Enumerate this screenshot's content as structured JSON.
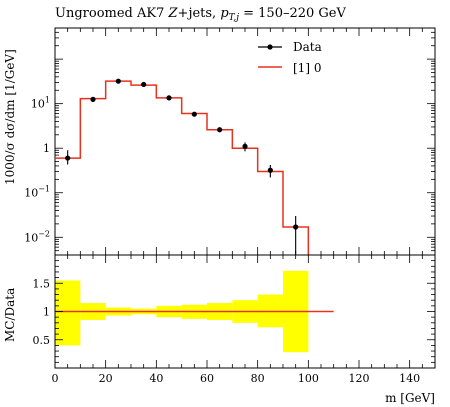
{
  "title": "Ungroomed AK7 Z+jets, p_{T,j} = 150–220 GeV",
  "title_parts": {
    "prefix": "Ungroomed AK7 ",
    "z": "Z",
    "mid": "+jets, ",
    "pt": "p",
    "sub": "T,j",
    "suffix": " = 150–220 GeV"
  },
  "legend": {
    "data_label": "Data",
    "mc_label": "[1] 0",
    "placement": "top-right"
  },
  "colors": {
    "mc_line": "#e8321e",
    "ratio_band": "#ffff00",
    "data_marker": "#000000"
  },
  "chart_data": [
    {
      "type": "line",
      "panel": "main",
      "ylabel": "1000/σ dσ/dm [1/GeV]",
      "ylog": true,
      "ylim": [
        0.004,
        500
      ],
      "xlim": [
        0,
        150
      ],
      "y_ticks": [
        {
          "value": 0.01,
          "base": "10",
          "exp": "−2"
        },
        {
          "value": 0.1,
          "base": "10",
          "exp": "−1"
        },
        {
          "value": 1,
          "base": "1",
          "exp": ""
        },
        {
          "value": 10,
          "base": "10",
          "exp": "1"
        }
      ],
      "bin_edges": [
        0,
        10,
        20,
        30,
        40,
        50,
        60,
        70,
        80,
        90,
        100
      ],
      "series": [
        {
          "name": "Data",
          "x": [
            5,
            15,
            25,
            35,
            45,
            55,
            65,
            75,
            85,
            95
          ],
          "y": [
            0.6,
            12.5,
            32,
            27,
            13.5,
            5.8,
            2.6,
            1.1,
            0.32,
            0.017
          ],
          "err_lo": [
            0.43,
            11.3,
            30.5,
            25.6,
            12.5,
            5.2,
            2.3,
            0.85,
            0.22,
            0.004
          ],
          "err_hi": [
            0.9,
            14,
            34,
            28.5,
            14.5,
            6.4,
            2.9,
            1.35,
            0.42,
            0.03
          ]
        },
        {
          "name": "[1] 0",
          "y": [
            0.6,
            13,
            32,
            26,
            13.5,
            6.0,
            2.6,
            1.0,
            0.3,
            0.017
          ]
        }
      ]
    },
    {
      "type": "area",
      "panel": "ratio",
      "xlabel": "m [GeV]",
      "ylabel": "MC/Data",
      "xlim": [
        0,
        150
      ],
      "ylim": [
        0,
        2
      ],
      "x_ticks": [
        0,
        20,
        40,
        60,
        80,
        100,
        120,
        140
      ],
      "y_ticks": [
        0.5,
        1,
        1.5
      ],
      "bin_edges": [
        0,
        10,
        20,
        30,
        40,
        50,
        60,
        70,
        80,
        90,
        100
      ],
      "band_lo": [
        0.4,
        0.85,
        0.93,
        0.95,
        0.9,
        0.87,
        0.85,
        0.8,
        0.72,
        0.28
      ],
      "band_hi": [
        1.55,
        1.15,
        1.07,
        1.05,
        1.1,
        1.12,
        1.15,
        1.2,
        1.3,
        1.72
      ],
      "ratio_line": {
        "x": [
          0,
          110
        ],
        "y": [
          1,
          1
        ]
      }
    }
  ]
}
